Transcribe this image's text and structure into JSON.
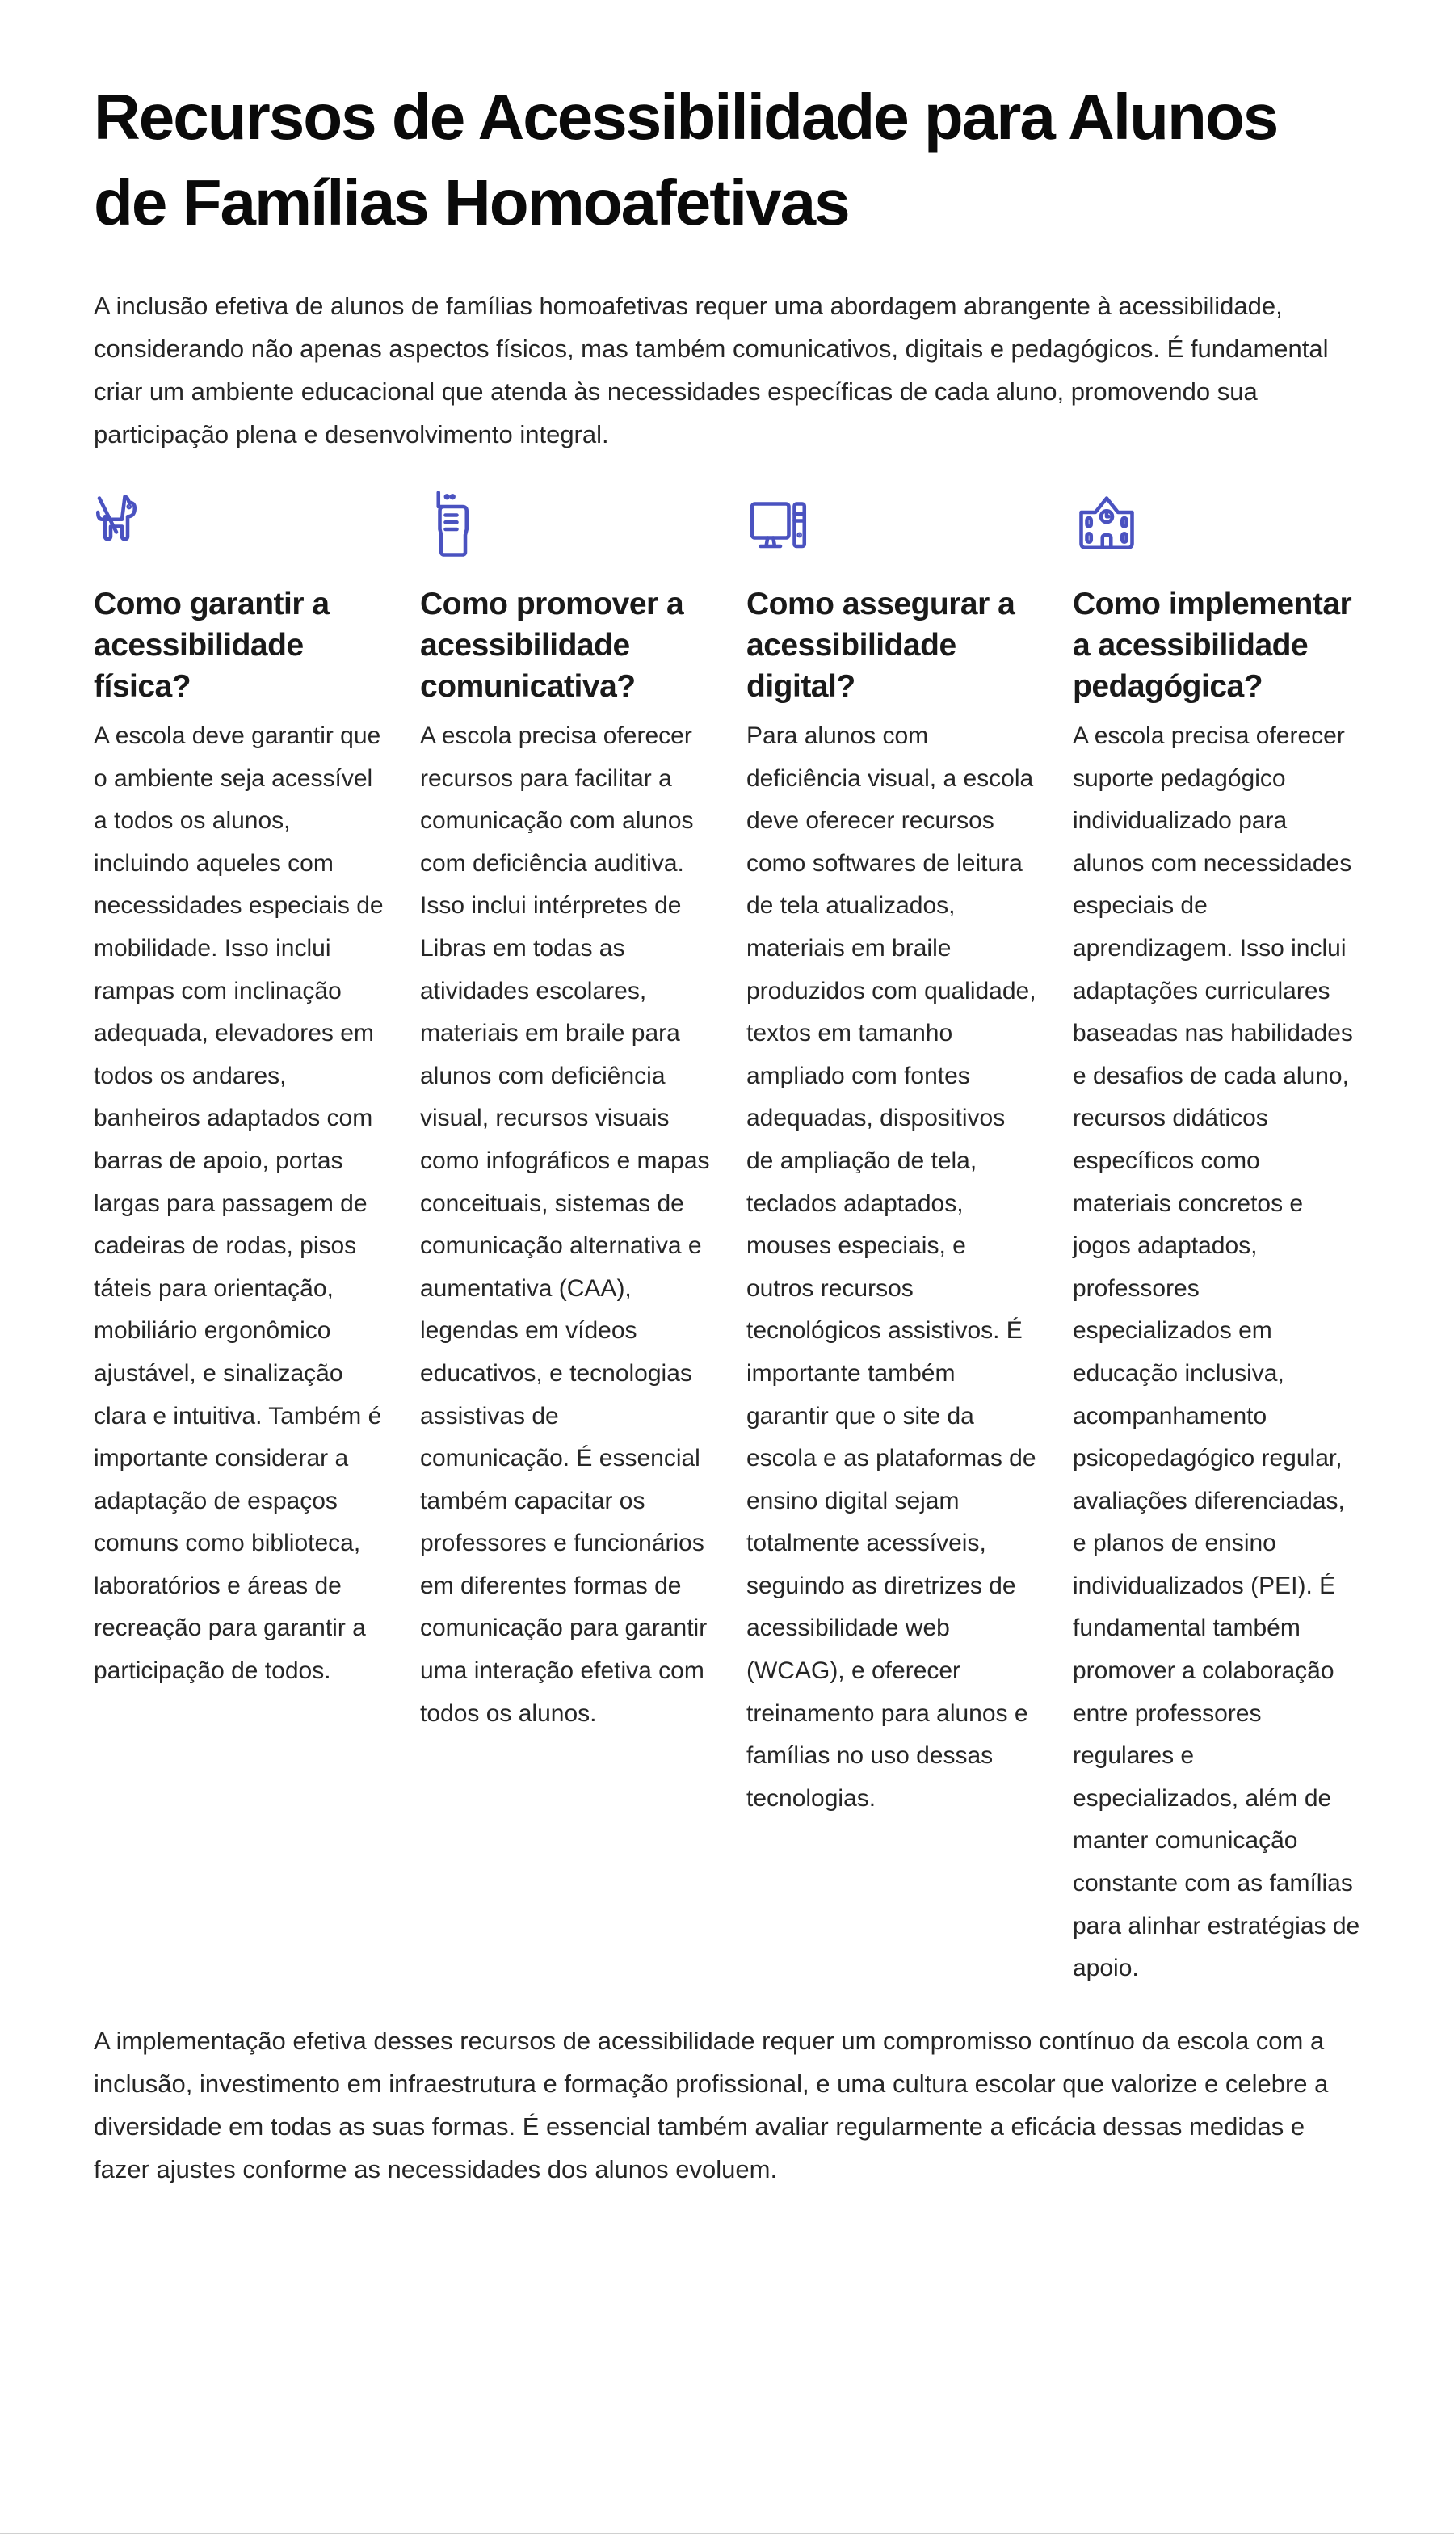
{
  "title": "Recursos de Acessibilidade para Alunos de Famílias Homoafetivas",
  "intro": "A inclusão efetiva de alunos de famílias homoafetivas requer uma abordagem abrangente à acessibilidade, considerando não apenas aspectos físicos, mas também comunicativos, digitais e pedagógicos. É fundamental criar um ambiente educacional que atenda às necessidades específicas de cada aluno, promovendo sua participação plena e desenvolvimento integral.",
  "accent_color": "#4a52c0",
  "sections": [
    {
      "icon": "guide-dog-icon",
      "heading": "Como garantir a acessibilidade física?",
      "body": "A escola deve garantir que o ambiente seja acessível a todos os alunos, incluindo aqueles com necessidades especiais de mobilidade. Isso inclui rampas com inclinação adequada, elevadores em todos os andares, banheiros adaptados com barras de apoio, portas largas para passagem de cadeiras de rodas, pisos táteis para orientação, mobiliário ergonômico ajustável, e sinalização clara e intuitiva. Também é importante considerar a adaptação de espaços comuns como biblioteca, laboratórios e áreas de recreação para garantir a participação de todos."
    },
    {
      "icon": "walkie-talkie-icon",
      "heading": "Como promover a acessibilidade comunicativa?",
      "body": "A escola precisa oferecer recursos para facilitar a comunicação com alunos com deficiência auditiva. Isso inclui intérpretes de Libras em todas as atividades escolares, materiais em braile para alunos com deficiência visual, recursos visuais como infográficos e mapas conceituais, sistemas de comunicação alternativa e aumentativa (CAA), legendas em vídeos educativos, e tecnologias assistivas de comunicação. É essencial também capacitar os professores e funcionários em diferentes formas de comunicação para garantir uma interação efetiva com todos os alunos."
    },
    {
      "icon": "desktop-computer-icon",
      "heading": "Como assegurar a acessibilidade digital?",
      "body": "Para alunos com deficiência visual, a escola deve oferecer recursos como softwares de leitura de tela atualizados, materiais em braile produzidos com qualidade, textos em tamanho ampliado com fontes adequadas, dispositivos de ampliação de tela, teclados adaptados, mouses especiais, e outros recursos tecnológicos assistivos. É importante também garantir que o site da escola e as plataformas de ensino digital sejam totalmente acessíveis, seguindo as diretrizes de acessibilidade web (WCAG), e oferecer treinamento para alunos e famílias no uso dessas tecnologias."
    },
    {
      "icon": "school-building-icon",
      "heading": "Como implementar a acessibilidade pedagógica?",
      "body": "A escola precisa oferecer suporte pedagógico individualizado para alunos com necessidades especiais de aprendizagem. Isso inclui adaptações curriculares baseadas nas habilidades e desafios de cada aluno, recursos didáticos específicos como materiais concretos e jogos adaptados, professores especializados em educação inclusiva, acompanhamento psicopedagógico regular, avaliações diferenciadas, e planos de ensino individualizados (PEI). É fundamental também promover a colaboração entre professores regulares e especializados, além de manter comunicação constante com as famílias para alinhar estratégias de apoio."
    }
  ],
  "outro": "A implementação efetiva desses recursos de acessibilidade requer um compromisso contínuo da escola com a inclusão, investimento em infraestrutura e formação profissional, e uma cultura escolar que valorize e celebre a diversidade em todas as suas formas. É essencial também avaliar regularmente a eficácia dessas medidas e fazer ajustes conforme as necessidades dos alunos evoluem."
}
